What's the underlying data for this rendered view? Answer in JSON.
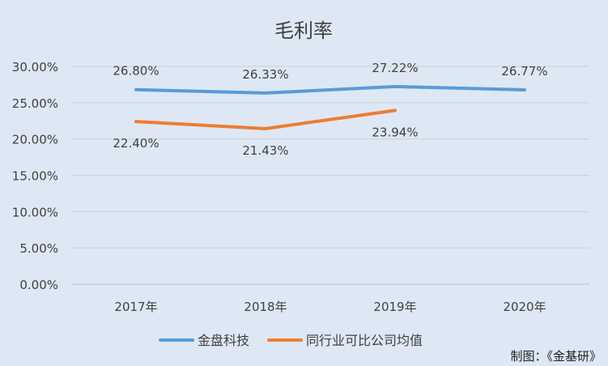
{
  "chart_data": {
    "type": "line",
    "title": "毛利率",
    "categories": [
      "2017年",
      "2018年",
      "2019年",
      "2020年"
    ],
    "yticks": [
      "0.00%",
      "5.00%",
      "10.00%",
      "15.00%",
      "20.00%",
      "25.00%",
      "30.00%"
    ],
    "ylim": [
      0,
      30
    ],
    "grid": true,
    "legend_position": "bottom",
    "series": [
      {
        "name": "金盘科技",
        "color": "#5b9bd5",
        "values": [
          26.8,
          26.33,
          27.22,
          26.77
        ],
        "labels": [
          "26.80%",
          "26.33%",
          "27.22%",
          "26.77%"
        ],
        "label_pos": "above"
      },
      {
        "name": "同行业可比公司均值",
        "color": "#ed7d31",
        "values": [
          22.4,
          21.43,
          23.94,
          null
        ],
        "labels": [
          "22.40%",
          "21.43%",
          "23.94%",
          null
        ],
        "label_pos": "below"
      }
    ]
  },
  "footer": "制图：《金基研》"
}
